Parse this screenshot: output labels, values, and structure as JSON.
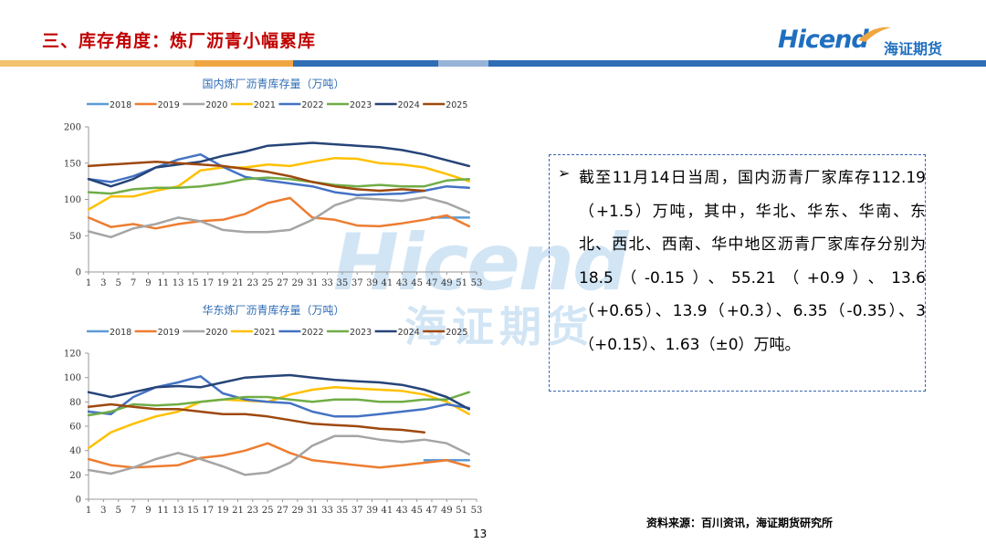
{
  "header": {
    "title": "三、库存角度：炼厂沥青小幅累库",
    "logo_text_en": "Hicend",
    "logo_text_cn": "海证期货",
    "bar_colors": [
      "#f3c26e",
      "#f0a640",
      "#2f6db5",
      "#2f6db5",
      "#98b3d8",
      "#2f6db5"
    ]
  },
  "watermark": {
    "en": "Hicend",
    "cn": "海证期货"
  },
  "note": {
    "bullet": "➢",
    "text": "截至11月14日当周，国内沥青厂家库存112.19（+1.5）万吨，其中，华北、华东、华南、东北、西北、西南、华中地区沥青厂家库存分别为18.5（-0.15）、55.21（+0.9）、13.6（+0.65）、13.9（+0.3）、6.35（-0.35）、3（+0.15）、1.63（±0）万吨。"
  },
  "source": "资料来源：百川资讯，海证期货研究所",
  "page_number": "13",
  "chart_data": [
    {
      "type": "line",
      "title": "国内炼厂沥青库存量（万吨）",
      "xlabel": "",
      "ylabel": "",
      "ylim": [
        0,
        200
      ],
      "yticks": [
        "0",
        "50",
        "100",
        "150",
        "200"
      ],
      "x_ticks": [
        "1",
        "3",
        "5",
        "7",
        "9",
        "11",
        "13",
        "15",
        "17",
        "19",
        "21",
        "23",
        "25",
        "27",
        "29",
        "31",
        "33",
        "35",
        "37",
        "39",
        "41",
        "43",
        "45",
        "47",
        "49",
        "51",
        "53"
      ],
      "grid": false,
      "legend_position": "top",
      "series": [
        {
          "name": "2018",
          "color": "#5b9bd5",
          "x": [
            47,
            52
          ],
          "y": [
            75,
            75
          ]
        },
        {
          "name": "2019",
          "color": "#ed7d31",
          "x": [
            1,
            4,
            7,
            10,
            13,
            16,
            19,
            22,
            25,
            28,
            31,
            34,
            37,
            40,
            43,
            46,
            49,
            52
          ],
          "y": [
            75,
            62,
            66,
            60,
            66,
            70,
            72,
            80,
            95,
            102,
            75,
            72,
            64,
            63,
            67,
            72,
            78,
            63
          ]
        },
        {
          "name": "2020",
          "color": "#a5a5a5",
          "x": [
            1,
            4,
            7,
            10,
            13,
            16,
            19,
            22,
            25,
            28,
            31,
            34,
            37,
            40,
            43,
            46,
            49,
            52
          ],
          "y": [
            56,
            48,
            60,
            66,
            75,
            70,
            58,
            55,
            55,
            58,
            72,
            92,
            102,
            100,
            98,
            103,
            95,
            82
          ]
        },
        {
          "name": "2021",
          "color": "#ffc000",
          "x": [
            1,
            4,
            7,
            10,
            13,
            16,
            19,
            22,
            25,
            28,
            31,
            34,
            37,
            40,
            43,
            46,
            49,
            52
          ],
          "y": [
            86,
            104,
            104,
            112,
            118,
            140,
            144,
            144,
            148,
            146,
            152,
            157,
            156,
            150,
            148,
            144,
            135,
            125
          ]
        },
        {
          "name": "2022",
          "color": "#4472c4",
          "x": [
            1,
            4,
            7,
            10,
            13,
            16,
            19,
            22,
            25,
            28,
            31,
            34,
            37,
            40,
            43,
            46,
            49,
            52
          ],
          "y": [
            128,
            124,
            132,
            144,
            155,
            162,
            145,
            131,
            126,
            122,
            118,
            110,
            106,
            107,
            108,
            112,
            118,
            116
          ]
        },
        {
          "name": "2023",
          "color": "#70ad47",
          "x": [
            1,
            4,
            7,
            10,
            13,
            16,
            19,
            22,
            25,
            28,
            31,
            34,
            37,
            40,
            43,
            46,
            49,
            52
          ],
          "y": [
            110,
            108,
            114,
            116,
            116,
            118,
            122,
            128,
            130,
            128,
            124,
            120,
            118,
            120,
            118,
            118,
            126,
            128
          ]
        },
        {
          "name": "2024",
          "color": "#264478",
          "x": [
            1,
            4,
            7,
            10,
            13,
            16,
            19,
            22,
            25,
            28,
            31,
            34,
            37,
            40,
            43,
            46,
            49,
            52
          ],
          "y": [
            128,
            118,
            128,
            144,
            148,
            152,
            160,
            166,
            174,
            176,
            178,
            176,
            174,
            172,
            168,
            162,
            154,
            146
          ]
        },
        {
          "name": "2025",
          "color": "#9e480e",
          "x": [
            1,
            4,
            7,
            10,
            13,
            16,
            19,
            22,
            25,
            28,
            31,
            34,
            37,
            40,
            43,
            46
          ],
          "y": [
            146,
            148,
            150,
            152,
            150,
            148,
            146,
            142,
            138,
            132,
            124,
            118,
            114,
            112,
            114,
            112
          ]
        }
      ]
    },
    {
      "type": "line",
      "title": "华东炼厂沥青库存量（万吨）",
      "xlabel": "",
      "ylabel": "",
      "ylim": [
        0,
        120
      ],
      "yticks": [
        "0",
        "20",
        "40",
        "60",
        "80",
        "100",
        "120"
      ],
      "x_ticks": [
        "1",
        "3",
        "5",
        "7",
        "9",
        "11",
        "13",
        "15",
        "17",
        "19",
        "21",
        "23",
        "25",
        "27",
        "29",
        "31",
        "33",
        "35",
        "37",
        "39",
        "41",
        "43",
        "45",
        "47",
        "49",
        "51",
        "53"
      ],
      "grid": false,
      "legend_position": "top",
      "series": [
        {
          "name": "2018",
          "color": "#5b9bd5",
          "x": [
            46,
            49,
            52
          ],
          "y": [
            32,
            32,
            32
          ]
        },
        {
          "name": "2019",
          "color": "#ed7d31",
          "x": [
            1,
            4,
            7,
            10,
            13,
            16,
            19,
            22,
            25,
            28,
            31,
            34,
            37,
            40,
            43,
            46,
            49,
            52
          ],
          "y": [
            33,
            28,
            26,
            27,
            28,
            34,
            36,
            40,
            46,
            38,
            32,
            30,
            28,
            26,
            28,
            30,
            32,
            27
          ]
        },
        {
          "name": "2020",
          "color": "#a5a5a5",
          "x": [
            1,
            4,
            7,
            10,
            13,
            16,
            19,
            22,
            25,
            28,
            31,
            34,
            37,
            40,
            43,
            46,
            49,
            52
          ],
          "y": [
            24,
            21,
            26,
            33,
            38,
            33,
            27,
            20,
            22,
            30,
            44,
            52,
            52,
            49,
            47,
            49,
            46,
            37
          ]
        },
        {
          "name": "2021",
          "color": "#ffc000",
          "x": [
            1,
            4,
            7,
            10,
            13,
            16,
            19,
            22,
            25,
            28,
            31,
            34,
            37,
            40,
            43,
            46,
            49,
            52
          ],
          "y": [
            42,
            55,
            62,
            68,
            72,
            80,
            82,
            81,
            80,
            86,
            90,
            92,
            91,
            90,
            89,
            86,
            80,
            70
          ]
        },
        {
          "name": "2022",
          "color": "#4472c4",
          "x": [
            1,
            4,
            7,
            10,
            13,
            16,
            19,
            22,
            25,
            28,
            31,
            34,
            37,
            40,
            43,
            46,
            49,
            52
          ],
          "y": [
            72,
            70,
            84,
            92,
            96,
            101,
            87,
            82,
            80,
            79,
            72,
            68,
            68,
            70,
            72,
            74,
            78,
            75
          ]
        },
        {
          "name": "2023",
          "color": "#70ad47",
          "x": [
            1,
            4,
            7,
            10,
            13,
            16,
            19,
            22,
            25,
            28,
            31,
            34,
            37,
            40,
            43,
            46,
            49,
            52
          ],
          "y": [
            69,
            72,
            78,
            77,
            78,
            80,
            82,
            84,
            84,
            82,
            80,
            82,
            82,
            80,
            80,
            82,
            82,
            88
          ]
        },
        {
          "name": "2024",
          "color": "#264478",
          "x": [
            1,
            4,
            7,
            10,
            13,
            16,
            19,
            22,
            25,
            28,
            31,
            34,
            37,
            40,
            43,
            46,
            49,
            52
          ],
          "y": [
            88,
            84,
            88,
            92,
            93,
            92,
            96,
            100,
            101,
            102,
            100,
            98,
            97,
            96,
            94,
            90,
            84,
            74
          ]
        },
        {
          "name": "2025",
          "color": "#9e480e",
          "x": [
            1,
            4,
            7,
            10,
            13,
            16,
            19,
            22,
            25,
            28,
            31,
            34,
            37,
            40,
            43,
            46
          ],
          "y": [
            76,
            78,
            76,
            74,
            74,
            72,
            70,
            70,
            68,
            65,
            62,
            61,
            60,
            58,
            57,
            55
          ]
        }
      ]
    }
  ]
}
